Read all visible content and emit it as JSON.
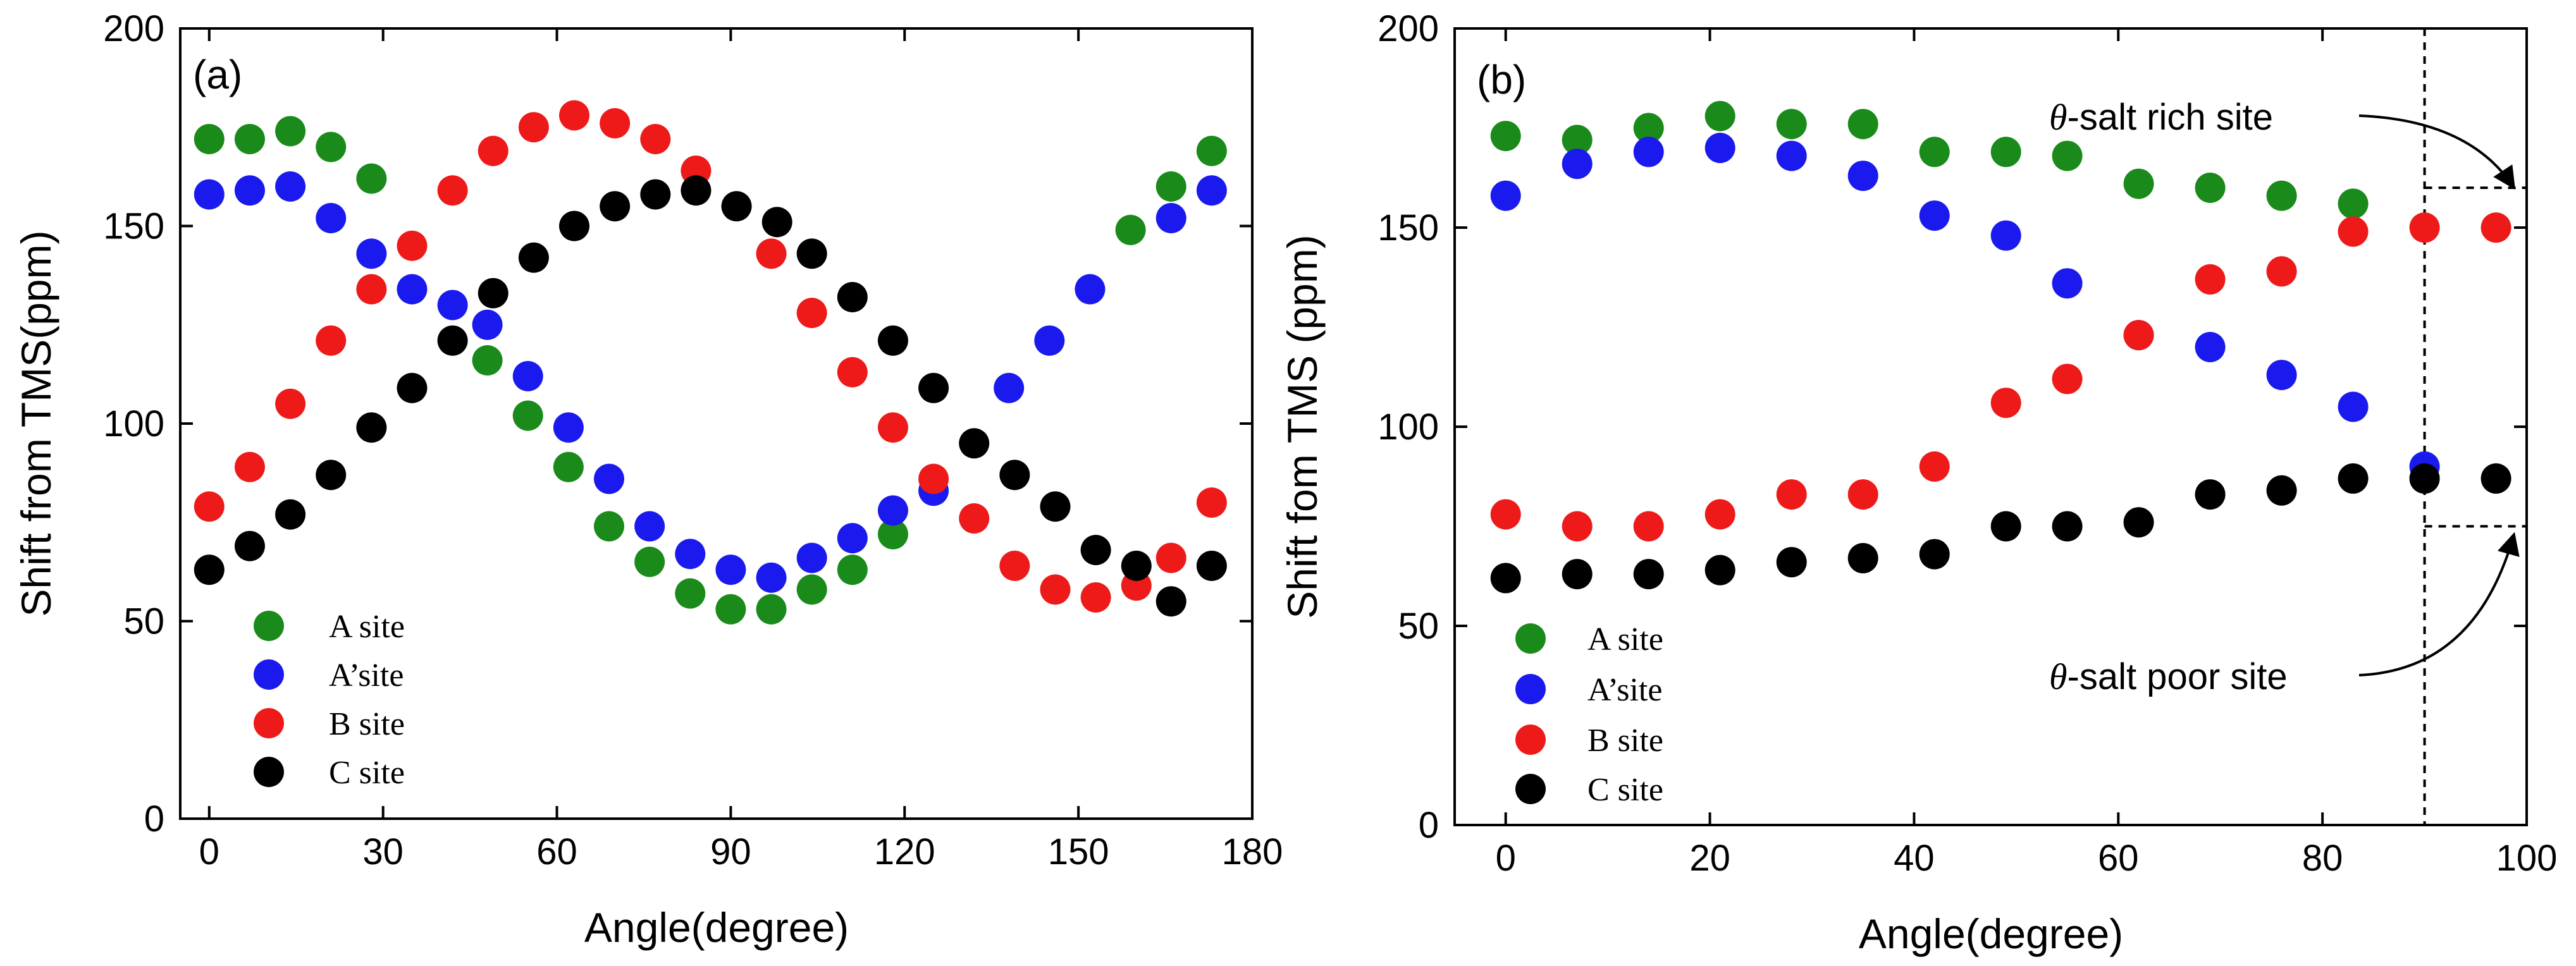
{
  "colors": {
    "A": "#1a8a1a",
    "A'": "#1a1aee",
    "B": "#ee1a1a",
    "C": "#000000"
  },
  "chart_data": [
    {
      "type": "scatter",
      "panel_label": "(a)",
      "xlabel": "Angle(degree)",
      "ylabel": "Shift from TMS(ppm)",
      "xlim": [
        -5,
        180
      ],
      "ylim": [
        0,
        200
      ],
      "xticks": [
        0,
        30,
        60,
        90,
        120,
        150,
        180
      ],
      "yticks": [
        0,
        50,
        100,
        150,
        200
      ],
      "xtick_labels": [
        "0",
        "30",
        "60",
        "90",
        "120",
        "150",
        "180"
      ],
      "ytick_labels": [
        "0",
        "50",
        "100",
        "150",
        "200"
      ],
      "legend": {
        "placement": "bottom-left",
        "entries": [
          {
            "key": "A",
            "label": "A site"
          },
          {
            "key": "A'",
            "label": "A’site"
          },
          {
            "key": "B",
            "label": "B site"
          },
          {
            "key": "C",
            "label": "C site"
          }
        ]
      },
      "series": [
        {
          "name": "A site",
          "key": "A",
          "points": [
            [
              0,
              172
            ],
            [
              7,
              172
            ],
            [
              14,
              174
            ],
            [
              21,
              170
            ],
            [
              28,
              162
            ],
            [
              48,
              116
            ],
            [
              55,
              102
            ],
            [
              62,
              89
            ],
            [
              69,
              74
            ],
            [
              76,
              65
            ],
            [
              83,
              57
            ],
            [
              90,
              53
            ],
            [
              97,
              53
            ],
            [
              104,
              58
            ],
            [
              111,
              63
            ],
            [
              118,
              72
            ],
            [
              159,
              149
            ],
            [
              166,
              160
            ],
            [
              173,
              169
            ]
          ]
        },
        {
          "name": "A’site",
          "key": "A'",
          "points": [
            [
              0,
              158
            ],
            [
              7,
              159
            ],
            [
              14,
              160
            ],
            [
              21,
              152
            ],
            [
              28,
              143
            ],
            [
              35,
              134
            ],
            [
              42,
              130
            ],
            [
              48,
              125
            ],
            [
              55,
              112
            ],
            [
              62,
              99
            ],
            [
              69,
              86
            ],
            [
              76,
              74
            ],
            [
              83,
              67
            ],
            [
              90,
              63
            ],
            [
              97,
              61
            ],
            [
              104,
              66
            ],
            [
              111,
              71
            ],
            [
              118,
              78
            ],
            [
              125,
              83
            ],
            [
              138,
              109
            ],
            [
              145,
              121
            ],
            [
              152,
              134
            ],
            [
              166,
              152
            ],
            [
              173,
              159
            ]
          ]
        },
        {
          "name": "B site",
          "key": "B",
          "points": [
            [
              0,
              79
            ],
            [
              7,
              89
            ],
            [
              14,
              105
            ],
            [
              21,
              121
            ],
            [
              28,
              134
            ],
            [
              35,
              145
            ],
            [
              42,
              159
            ],
            [
              49,
              169
            ],
            [
              56,
              175
            ],
            [
              63,
              178
            ],
            [
              70,
              176
            ],
            [
              77,
              172
            ],
            [
              84,
              164
            ],
            [
              97,
              143
            ],
            [
              104,
              128
            ],
            [
              111,
              113
            ],
            [
              118,
              99
            ],
            [
              125,
              86
            ],
            [
              132,
              76
            ],
            [
              139,
              64
            ],
            [
              146,
              58
            ],
            [
              153,
              56
            ],
            [
              160,
              59
            ],
            [
              166,
              66
            ],
            [
              173,
              80
            ]
          ]
        },
        {
          "name": "C site",
          "key": "C",
          "points": [
            [
              0,
              63
            ],
            [
              7,
              69
            ],
            [
              14,
              77
            ],
            [
              21,
              87
            ],
            [
              28,
              99
            ],
            [
              35,
              109
            ],
            [
              42,
              121
            ],
            [
              49,
              133
            ],
            [
              56,
              142
            ],
            [
              63,
              150
            ],
            [
              70,
              155
            ],
            [
              77,
              158
            ],
            [
              84,
              159
            ],
            [
              91,
              155
            ],
            [
              98,
              151
            ],
            [
              104,
              143
            ],
            [
              111,
              132
            ],
            [
              118,
              121
            ],
            [
              125,
              109
            ],
            [
              132,
              95
            ],
            [
              139,
              87
            ],
            [
              146,
              79
            ],
            [
              153,
              68
            ],
            [
              160,
              64
            ],
            [
              166,
              55
            ],
            [
              173,
              64
            ]
          ]
        }
      ]
    },
    {
      "type": "scatter",
      "panel_label": "(b)",
      "xlabel": "Angle(degree)",
      "ylabel": "Shift fom TMS (ppm)",
      "xlim": [
        -5,
        100
      ],
      "ylim": [
        0,
        200
      ],
      "xticks": [
        0,
        20,
        40,
        60,
        80,
        100
      ],
      "yticks": [
        0,
        50,
        100,
        150,
        200
      ],
      "xtick_labels": [
        "0",
        "20",
        "40",
        "60",
        "80",
        "100"
      ],
      "ytick_labels": [
        "0",
        "50",
        "100",
        "150",
        "200"
      ],
      "vline_x": 90,
      "legend": {
        "placement": "bottom-left",
        "entries": [
          {
            "key": "A",
            "label": "A site"
          },
          {
            "key": "A'",
            "label": "A’site"
          },
          {
            "key": "B",
            "label": "B site"
          },
          {
            "key": "C",
            "label": "C site"
          }
        ]
      },
      "annotations": [
        {
          "theta": "θ",
          "text": "-salt  rich site",
          "value": 160
        },
        {
          "theta": "θ",
          "text": "-salt poor site",
          "value": 75
        }
      ],
      "series": [
        {
          "name": "A site",
          "key": "A",
          "points": [
            [
              0,
              173
            ],
            [
              7,
              172
            ],
            [
              14,
              175
            ],
            [
              21,
              178
            ],
            [
              28,
              176
            ],
            [
              35,
              176
            ],
            [
              42,
              169
            ],
            [
              49,
              169
            ],
            [
              55,
              168
            ],
            [
              62,
              161
            ],
            [
              69,
              160
            ],
            [
              76,
              158
            ],
            [
              83,
              156
            ]
          ]
        },
        {
          "name": "A’site",
          "key": "A'",
          "points": [
            [
              0,
              158
            ],
            [
              7,
              166
            ],
            [
              14,
              169
            ],
            [
              21,
              170
            ],
            [
              28,
              168
            ],
            [
              35,
              163
            ],
            [
              42,
              153
            ],
            [
              49,
              148
            ],
            [
              55,
              136
            ],
            [
              62,
              123
            ],
            [
              69,
              120
            ],
            [
              76,
              113
            ],
            [
              83,
              105
            ],
            [
              90,
              90
            ]
          ]
        },
        {
          "name": "B site",
          "key": "B",
          "points": [
            [
              0,
              78
            ],
            [
              7,
              75
            ],
            [
              14,
              75
            ],
            [
              21,
              78
            ],
            [
              28,
              83
            ],
            [
              35,
              83
            ],
            [
              42,
              90
            ],
            [
              49,
              106
            ],
            [
              55,
              112
            ],
            [
              62,
              123
            ],
            [
              69,
              137
            ],
            [
              76,
              139
            ],
            [
              83,
              149
            ],
            [
              90,
              150
            ],
            [
              97,
              150
            ]
          ]
        },
        {
          "name": "C site",
          "key": "C",
          "points": [
            [
              0,
              62
            ],
            [
              7,
              63
            ],
            [
              14,
              63
            ],
            [
              21,
              64
            ],
            [
              28,
              66
            ],
            [
              35,
              67
            ],
            [
              42,
              68
            ],
            [
              49,
              75
            ],
            [
              55,
              75
            ],
            [
              62,
              76
            ],
            [
              69,
              83
            ],
            [
              76,
              84
            ],
            [
              83,
              87
            ],
            [
              90,
              87
            ],
            [
              97,
              87
            ]
          ]
        }
      ]
    }
  ]
}
